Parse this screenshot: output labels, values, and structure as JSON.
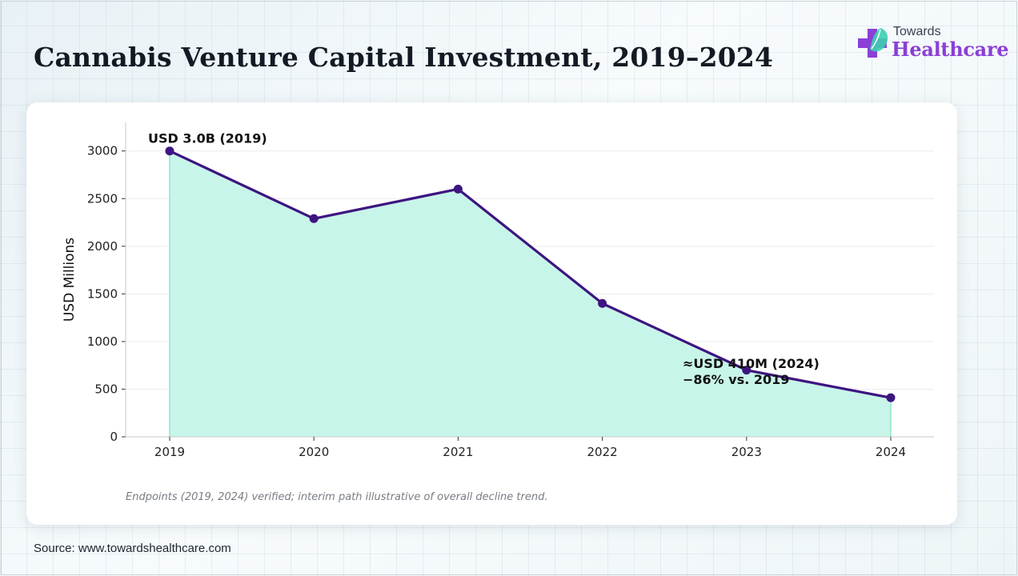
{
  "title": "Cannabis Venture Capital Investment, 2019–2024",
  "logo": {
    "top_text": "Towards",
    "bottom_text": "Healthcare",
    "icon": "medical-cross-leaf-icon"
  },
  "note": "Endpoints (2019, 2024) verified; interim path illustrative of overall decline trend.",
  "source": "Source: www.towardshealthcare.com",
  "colors": {
    "line": "#3d1580",
    "fill": "#c8f5e9",
    "fill_edge": "#8fe6cc",
    "grid": "#ececec",
    "logo_purple": "#8b3fd6"
  },
  "chart_data": {
    "type": "area",
    "categories": [
      "2019",
      "2020",
      "2021",
      "2022",
      "2023",
      "2024"
    ],
    "values": [
      3000,
      2290,
      2600,
      1400,
      700,
      410
    ],
    "ylabel": "USD Millions",
    "xlabel": "",
    "ylim": [
      0,
      3300
    ],
    "yticks": [
      0,
      500,
      1000,
      1500,
      2000,
      2500,
      3000
    ],
    "grid": true,
    "annotations": [
      {
        "lines": [
          "USD 3.0B (2019)"
        ],
        "x": "2019",
        "y": 3000
      },
      {
        "lines": [
          "≈USD 410M (2024)",
          "−86% vs. 2019"
        ],
        "x": "2024",
        "y": 410
      }
    ]
  }
}
